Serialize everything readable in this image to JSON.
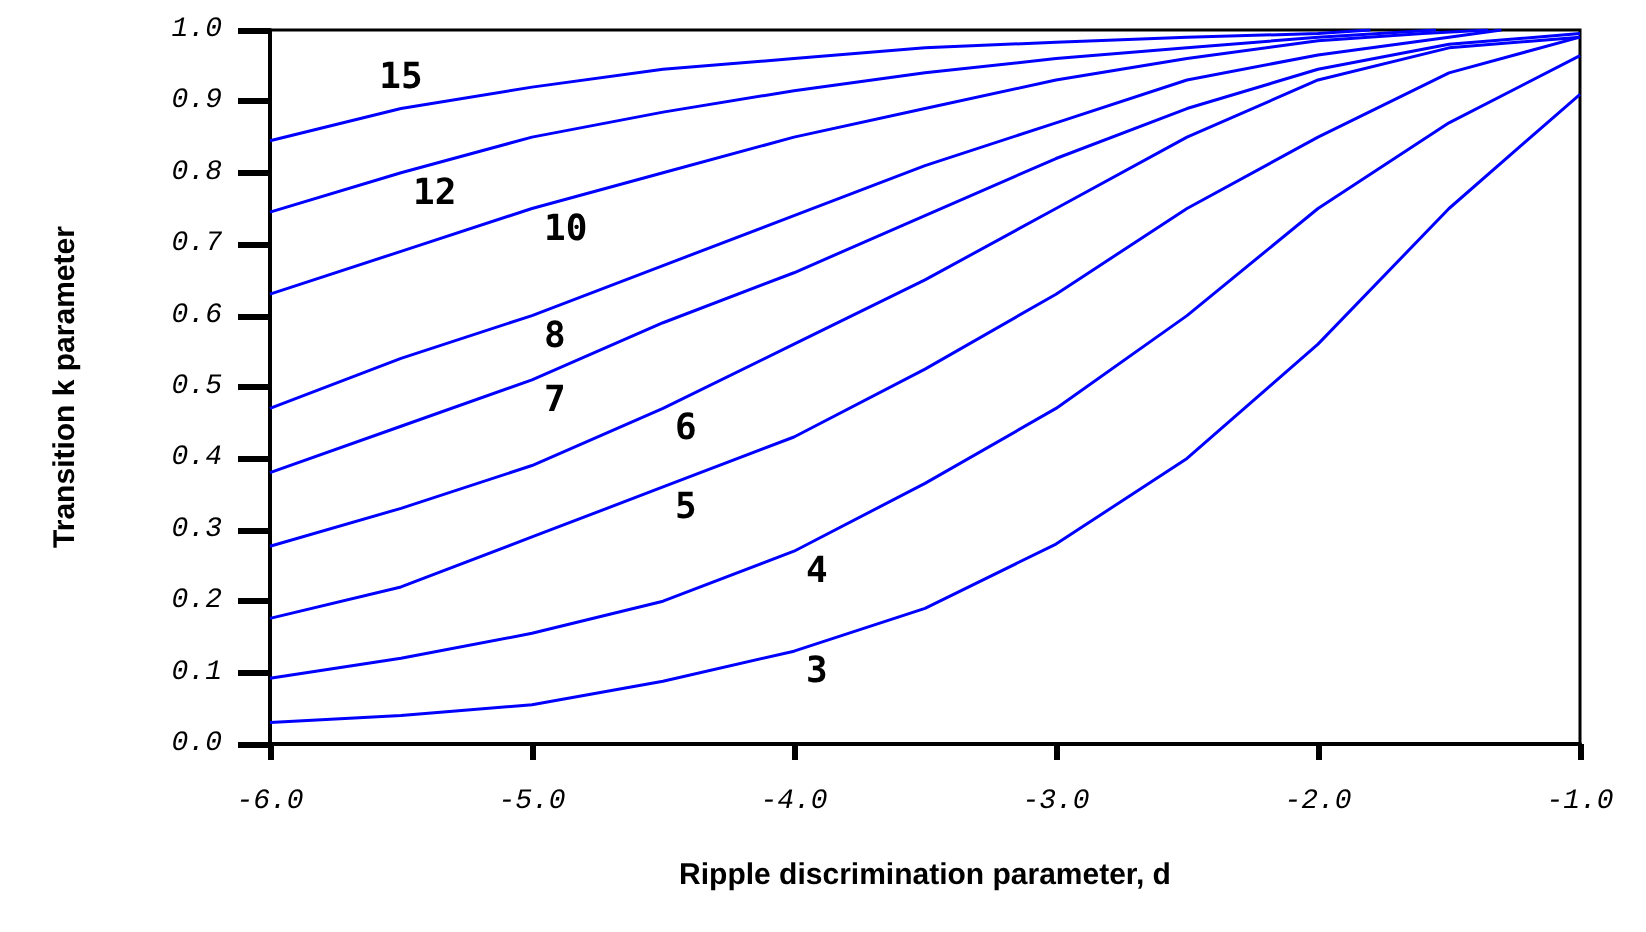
{
  "chart_data": {
    "type": "line",
    "xlabel": "Ripple discrimination parameter, d",
    "ylabel": "Transition k parameter",
    "xlim": [
      -6,
      -1
    ],
    "xticks": [
      {
        "value": -6,
        "label": "-6.0"
      },
      {
        "value": -5,
        "label": "-5.0"
      },
      {
        "value": -4,
        "label": "-4.0"
      },
      {
        "value": -3,
        "label": "-3.0"
      },
      {
        "value": -2,
        "label": "-2.0"
      },
      {
        "value": -1,
        "label": "-1.0"
      }
    ],
    "ylim": [
      0,
      1
    ],
    "yticks": [
      {
        "value": 0,
        "label": "0.0"
      },
      {
        "value": 0.1,
        "label": "0.1"
      },
      {
        "value": 0.2,
        "label": "0.2"
      },
      {
        "value": 0.3,
        "label": "0.3"
      },
      {
        "value": 0.4,
        "label": "0.4"
      },
      {
        "value": 0.5,
        "label": "0.5"
      },
      {
        "value": 0.6,
        "label": "0.6"
      },
      {
        "value": 0.7,
        "label": "0.7"
      },
      {
        "value": 0.8,
        "label": "0.8"
      },
      {
        "value": 0.9,
        "label": "0.9"
      },
      {
        "value": 1.0,
        "label": "1.0"
      }
    ],
    "grid": false,
    "legend": false,
    "marker": "none",
    "line_style": "solid",
    "series": [
      {
        "name": "3",
        "color": "#0000ff",
        "x": [
          -6,
          -5.5,
          -5,
          -4.5,
          -4,
          -3.5,
          -3,
          -2.5,
          -2,
          -1.5,
          -1
        ],
        "values": [
          0.03,
          0.04,
          0.055,
          0.088,
          0.13,
          0.19,
          0.28,
          0.4,
          0.56,
          0.75,
          0.91
        ]
      },
      {
        "name": "4",
        "color": "#0000ff",
        "x": [
          -6,
          -5.5,
          -5,
          -4.5,
          -4,
          -3.5,
          -3,
          -2.5,
          -2,
          -1.5,
          -1
        ],
        "values": [
          0.092,
          0.12,
          0.155,
          0.2,
          0.27,
          0.365,
          0.47,
          0.6,
          0.75,
          0.87,
          0.964
        ]
      },
      {
        "name": "5",
        "color": "#0000ff",
        "x": [
          -6,
          -5.5,
          -5,
          -4.5,
          -4,
          -3.5,
          -3,
          -2.5,
          -2,
          -1.5,
          -1
        ],
        "values": [
          0.176,
          0.22,
          0.29,
          0.36,
          0.43,
          0.525,
          0.63,
          0.75,
          0.85,
          0.94,
          0.99
        ]
      },
      {
        "name": "6",
        "color": "#0000ff",
        "x": [
          -6,
          -5.5,
          -5,
          -4.5,
          -4,
          -3.5,
          -3,
          -2.5,
          -2,
          -1.5,
          -1
        ],
        "values": [
          0.277,
          0.33,
          0.39,
          0.47,
          0.56,
          0.65,
          0.75,
          0.85,
          0.93,
          0.975,
          0.99
        ]
      },
      {
        "name": "7",
        "color": "#0000ff",
        "x": [
          -6,
          -5.5,
          -5,
          -4.5,
          -4,
          -3.5,
          -3,
          -2.5,
          -2,
          -1.5,
          -1
        ],
        "values": [
          0.38,
          0.445,
          0.51,
          0.59,
          0.66,
          0.74,
          0.82,
          0.89,
          0.945,
          0.98,
          0.995
        ]
      },
      {
        "name": "8",
        "color": "#0000ff",
        "x": [
          -6,
          -5.5,
          -5,
          -4.5,
          -4,
          -3.5,
          -3,
          -2.5,
          -2,
          -1.5,
          -1.3
        ],
        "values": [
          0.47,
          0.54,
          0.6,
          0.67,
          0.74,
          0.81,
          0.87,
          0.93,
          0.965,
          0.99,
          1.0
        ]
      },
      {
        "name": "10",
        "color": "#0000ff",
        "x": [
          -6,
          -5.5,
          -5,
          -4.5,
          -4,
          -3.5,
          -3,
          -2.5,
          -2,
          -1.6,
          -1.35
        ],
        "values": [
          0.63,
          0.69,
          0.75,
          0.8,
          0.85,
          0.89,
          0.93,
          0.96,
          0.985,
          0.995,
          1.0
        ]
      },
      {
        "name": "12",
        "color": "#0000ff",
        "x": [
          -6,
          -5.5,
          -5,
          -4.5,
          -4,
          -3.5,
          -3,
          -2.5,
          -2,
          -1.55
        ],
        "values": [
          0.745,
          0.8,
          0.85,
          0.885,
          0.915,
          0.94,
          0.96,
          0.975,
          0.99,
          1.0
        ]
      },
      {
        "name": "15",
        "color": "#0000ff",
        "x": [
          -6,
          -5.5,
          -5,
          -4.5,
          -4,
          -3.5,
          -3,
          -2.5,
          -2,
          -1.8
        ],
        "values": [
          0.845,
          0.89,
          0.92,
          0.945,
          0.96,
          0.975,
          0.983,
          0.99,
          0.995,
          1.0
        ]
      }
    ]
  }
}
